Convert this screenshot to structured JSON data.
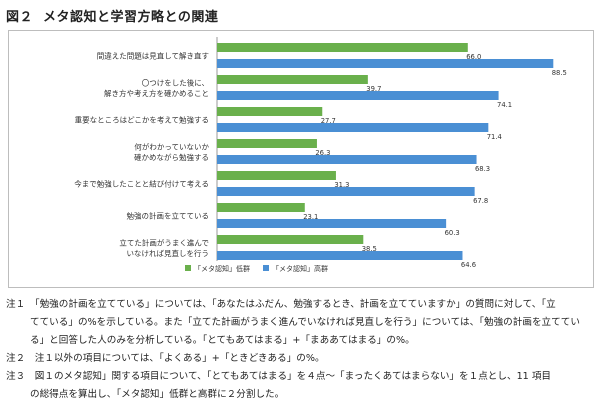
{
  "figure": {
    "title_num": "図２",
    "title_text": "メタ認知と学習方略との関連"
  },
  "chart_data": {
    "type": "bar",
    "orientation": "horizontal",
    "categories": [
      [
        "間違えた問題は見直して解き直す"
      ],
      [
        "〇つけをした後に、",
        "解き方や考え方を確かめること"
      ],
      [
        "重要なところはどこかを考えて勉強する"
      ],
      [
        "何がわかっていないか",
        "確かめながら勉強する"
      ],
      [
        "今まで勉強したことと結び付けて考える"
      ],
      [
        "勉強の計画を立てている"
      ],
      [
        "立てた計画がうまく進んで",
        "いなければ見直しを行う"
      ]
    ],
    "series": [
      {
        "name": "「メタ認知」低群",
        "color": "#6ab04c",
        "values": [
          66.0,
          39.7,
          27.7,
          26.3,
          31.3,
          23.1,
          38.5
        ]
      },
      {
        "name": "「メタ認知」高群",
        "color": "#4a8fd4",
        "values": [
          88.5,
          74.1,
          71.4,
          68.3,
          67.8,
          60.3,
          64.6
        ]
      }
    ],
    "xlim": [
      0,
      100
    ],
    "legend_position": "bottom-left"
  },
  "notes": [
    {
      "line1": "注１　「勉強の計画を立てている」については、「あなたはふだん、勉強するとき、計画を立てていますか」の質問に対して、「立",
      "line2": "てている」の%を示している。また「立てた計画がうまく進んでいなければ見直しを行う」については、「勉強の計画を立ててい",
      "line3": "る」と回答した人のみを分析している。「とてもあてはまる」+「まああてはまる」の%。"
    },
    {
      "line1": "注２　注１以外の項目については、「よくある」+「ときどきある」の%。"
    },
    {
      "line1": "注３　図１のメタ認知」関する項目について、「とてもあてはまる」を４点～「まったくあてはまらない」を１点とし、11 項目",
      "line2": "の総得点を算出し、「メタ認知」低群と高群に２分割した。"
    }
  ]
}
